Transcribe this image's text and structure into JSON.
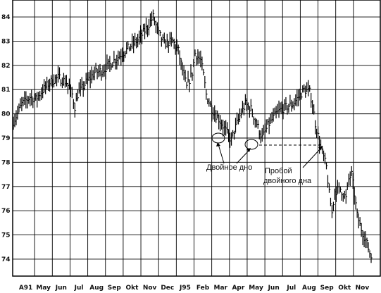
{
  "chart_data": {
    "type": "bar",
    "subtype": "ohlc",
    "title": "",
    "xlabel": "",
    "ylabel": "",
    "ylim": [
      73.3,
      84.7
    ],
    "yticks": [
      74,
      75,
      76,
      77,
      78,
      79,
      80,
      81,
      82,
      83,
      84
    ],
    "xticks": [
      "A91",
      "May",
      "Jun",
      "Jul",
      "Aug",
      "Sep",
      "Okt",
      "Nov",
      "Dec",
      "J95",
      "Feb",
      "Mar",
      "Apr",
      "May",
      "Jun",
      "Jul",
      "Aug",
      "Sep",
      "Okt",
      "Nov"
    ],
    "grid": true,
    "anchors": [
      [
        0,
        79.7
      ],
      [
        2,
        79.9
      ],
      [
        6,
        80.4
      ],
      [
        12,
        80.7
      ],
      [
        16,
        80.6
      ],
      [
        20,
        80.9
      ],
      [
        26,
        81.3
      ],
      [
        32,
        81.5
      ],
      [
        38,
        81.3
      ],
      [
        42,
        80.8
      ],
      [
        44,
        80.3
      ],
      [
        46,
        80.8
      ],
      [
        52,
        81.3
      ],
      [
        58,
        81.7
      ],
      [
        64,
        81.8
      ],
      [
        70,
        82.1
      ],
      [
        76,
        82.4
      ],
      [
        84,
        82.8
      ],
      [
        90,
        83.1
      ],
      [
        96,
        83.6
      ],
      [
        100,
        84.0
      ],
      [
        104,
        83.3
      ],
      [
        108,
        82.9
      ],
      [
        114,
        83.0
      ],
      [
        118,
        82.6
      ],
      [
        121,
        81.8
      ],
      [
        124,
        81.1
      ],
      [
        128,
        81.7
      ],
      [
        130,
        82.5
      ],
      [
        134,
        82.2
      ],
      [
        136,
        81.6
      ],
      [
        138,
        80.8
      ],
      [
        142,
        80.2
      ],
      [
        148,
        79.7
      ],
      [
        152,
        79.3
      ],
      [
        156,
        78.9
      ],
      [
        158,
        79.3
      ],
      [
        162,
        79.9
      ],
      [
        166,
        80.4
      ],
      [
        170,
        80.2
      ],
      [
        174,
        79.6
      ],
      [
        178,
        79.0
      ],
      [
        182,
        79.5
      ],
      [
        188,
        80.0
      ],
      [
        192,
        80.2
      ],
      [
        196,
        80.3
      ],
      [
        200,
        80.4
      ],
      [
        204,
        80.7
      ],
      [
        208,
        81.0
      ],
      [
        212,
        80.9
      ],
      [
        214,
        80.4
      ],
      [
        216,
        79.6
      ],
      [
        218,
        79.1
      ],
      [
        220,
        78.6
      ],
      [
        222,
        78.2
      ],
      [
        224,
        77.8
      ],
      [
        226,
        76.7
      ],
      [
        228,
        75.9
      ],
      [
        230,
        76.8
      ],
      [
        234,
        76.9
      ],
      [
        238,
        76.5
      ],
      [
        240,
        77.3
      ],
      [
        242,
        77.5
      ],
      [
        244,
        76.7
      ],
      [
        246,
        75.8
      ],
      [
        248,
        75.4
      ],
      [
        252,
        74.8
      ],
      [
        256,
        74.1
      ]
    ],
    "resistance_level": 78.8
  },
  "annotations": {
    "double_bottom": "Двойное дно",
    "breakout_line1": "Пробой",
    "breakout_line2": "двойного дна"
  }
}
